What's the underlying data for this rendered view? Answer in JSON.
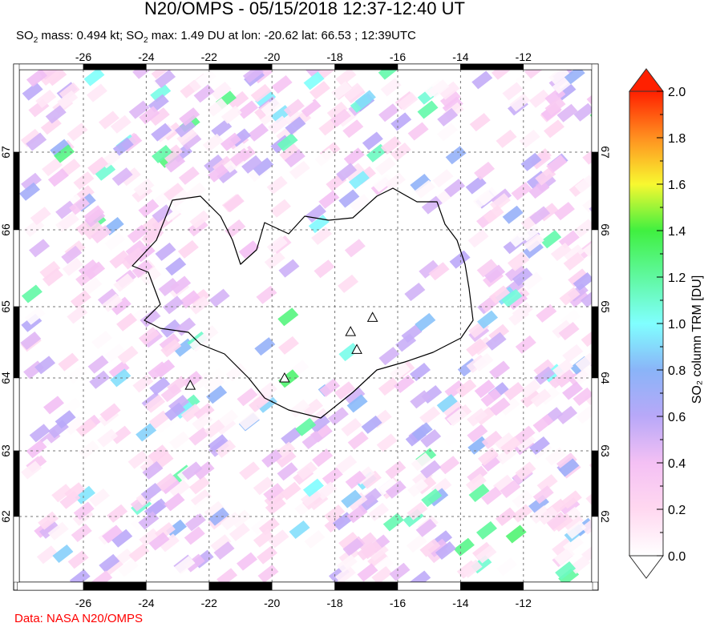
{
  "title": "N20/OMPS - 05/15/2018 12:37-12:40 UT",
  "subtitle": {
    "so2_mass_label": "SO",
    "mass_text": " mass: 0.494 kt; SO",
    "max_text": " max: 1.49 DU at lon: -20.62 lat: 66.53 ; 12:39UTC"
  },
  "credit": "Data: NASA N20/OMPS",
  "map": {
    "region": "Iceland",
    "lon_ticks": [
      "-26",
      "-24",
      "-22",
      "-20",
      "-18",
      "-16",
      "-14",
      "-12"
    ],
    "lat_ticks": [
      "67",
      "66",
      "65",
      "64",
      "63",
      "62"
    ],
    "lon_range": [
      -28,
      -10
    ],
    "lat_range": [
      61.2,
      68.0
    ],
    "gridlines": true,
    "volcanoes": [
      [
        -22.6,
        63.9
      ],
      [
        -19.6,
        64.0
      ],
      [
        -17.5,
        64.65
      ],
      [
        -17.3,
        64.4
      ],
      [
        -16.8,
        64.85
      ]
    ]
  },
  "colorbar": {
    "label": "SO₂ column TRM [DU]",
    "ticks": [
      "0.0",
      "0.2",
      "0.4",
      "0.6",
      "0.8",
      "1.0",
      "1.2",
      "1.4",
      "1.6",
      "1.8",
      "2.0"
    ],
    "range": [
      0,
      2.0
    ],
    "colors": [
      "#ffffff",
      "#ffd8f0",
      "#f4c0f4",
      "#b8a8f8",
      "#8ab4f8",
      "#80ffff",
      "#60f8a0",
      "#40f040",
      "#f8f830",
      "#ff9020",
      "#ff2000"
    ]
  }
}
